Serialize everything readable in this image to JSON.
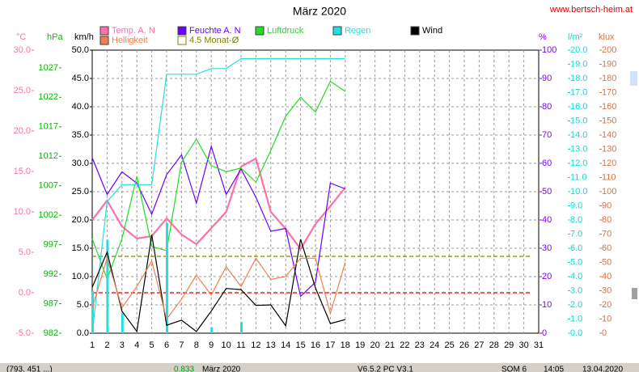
{
  "chart_data": {
    "type": "line",
    "title": "März 2020",
    "source": "www.bertsch-heim.at",
    "x": [
      1,
      2,
      3,
      4,
      5,
      6,
      7,
      8,
      9,
      10,
      11,
      12,
      13,
      14,
      15,
      16,
      17,
      18
    ],
    "xlim": [
      1,
      31
    ],
    "xticks": [
      1,
      2,
      3,
      4,
      5,
      6,
      7,
      8,
      9,
      10,
      11,
      12,
      13,
      14,
      15,
      16,
      17,
      18,
      19,
      20,
      21,
      22,
      23,
      24,
      25,
      26,
      27,
      28,
      29,
      30,
      31
    ],
    "grid": true,
    "axes": [
      {
        "unit": "°C",
        "color": "#ff6fa8",
        "side": "left",
        "lim": [
          -5,
          30
        ],
        "ticks": [
          {
            "value": -5,
            "label": "-5.0"
          },
          {
            "value": 0,
            "label": "0.0"
          },
          {
            "value": 5,
            "label": "5.0"
          },
          {
            "value": 10,
            "label": "10.0"
          },
          {
            "value": 15,
            "label": "15.0"
          },
          {
            "value": 20,
            "label": "20.0"
          },
          {
            "value": 25,
            "label": "25.0"
          },
          {
            "value": 30,
            "label": "30.0"
          }
        ]
      },
      {
        "unit": "hPa",
        "color": "#10b010",
        "side": "left",
        "lim": [
          982,
          1030
        ],
        "ticks": [
          982,
          987,
          992,
          997,
          1002,
          1007,
          1012,
          1017,
          1022,
          1027
        ]
      },
      {
        "unit": "km/h",
        "color": "#000000",
        "side": "left",
        "lim": [
          0,
          50
        ],
        "ticks": [
          {
            "value": 0,
            "label": "0.0"
          },
          {
            "value": 5,
            "label": "5.0"
          },
          {
            "value": 10,
            "label": "10.0"
          },
          {
            "value": 15,
            "label": "15.0"
          },
          {
            "value": 20,
            "label": "20.0"
          },
          {
            "value": 25,
            "label": "25.0"
          },
          {
            "value": 30,
            "label": "30.0"
          },
          {
            "value": 35,
            "label": "35.0"
          },
          {
            "value": 40,
            "label": "40.0"
          },
          {
            "value": 45,
            "label": "45.0"
          },
          {
            "value": 50,
            "label": "50.0"
          }
        ]
      },
      {
        "unit": "%",
        "color": "#8000ff",
        "side": "right",
        "lim": [
          0,
          100
        ],
        "ticks": [
          0,
          10,
          20,
          30,
          40,
          50,
          60,
          70,
          80,
          90,
          100
        ]
      },
      {
        "unit": "l/m²",
        "color": "#10d8d8",
        "side": "right",
        "lim": [
          0,
          20
        ],
        "ticks": [
          {
            "value": 0,
            "label": "0.0"
          },
          {
            "value": 1,
            "label": "1.0"
          },
          {
            "value": 2,
            "label": "2.0"
          },
          {
            "value": 3,
            "label": "3.0"
          },
          {
            "value": 4,
            "label": "4.0"
          },
          {
            "value": 5,
            "label": "5.0"
          },
          {
            "value": 6,
            "label": "6.0"
          },
          {
            "value": 7,
            "label": "7.0"
          },
          {
            "value": 8,
            "label": "8.0"
          },
          {
            "value": 9,
            "label": "9.0"
          },
          {
            "value": 10,
            "label": "10.0"
          },
          {
            "value": 11,
            "label": "11.0"
          },
          {
            "value": 12,
            "label": "12.0"
          },
          {
            "value": 13,
            "label": "13.0"
          },
          {
            "value": 14,
            "label": "14.0"
          },
          {
            "value": 15,
            "label": "15.0"
          },
          {
            "value": 16,
            "label": "16.0"
          },
          {
            "value": 17,
            "label": "17.0"
          },
          {
            "value": 18,
            "label": "18.0"
          },
          {
            "value": 19,
            "label": "19.0"
          },
          {
            "value": 20,
            "label": "20.0"
          }
        ]
      },
      {
        "unit": "klux",
        "color": "#e07040",
        "side": "right",
        "lim": [
          0,
          200
        ],
        "ticks": [
          0,
          10,
          20,
          30,
          40,
          50,
          60,
          70,
          80,
          90,
          100,
          110,
          120,
          130,
          140,
          150,
          160,
          170,
          180,
          190,
          200
        ]
      }
    ],
    "series": [
      {
        "name": "Temp. A. N",
        "color": "#ff6fa8",
        "axis": 0,
        "width": 2.2,
        "values": [
          9.0,
          11.4,
          8.2,
          6.7,
          7.0,
          9.2,
          7.2,
          6.0,
          8.0,
          10.0,
          15.6,
          16.6,
          10.0,
          7.9,
          5.4,
          8.5,
          10.7,
          13.0
        ]
      },
      {
        "name": "Feuchte A. N",
        "color": "#6a00ff",
        "axis": 3,
        "width": 1.2,
        "values": [
          62,
          49,
          57,
          53,
          42,
          56,
          63,
          46,
          66,
          49,
          58,
          48,
          36,
          37,
          13,
          18,
          53,
          51
        ]
      },
      {
        "name": "Luftdruck",
        "color": "#22dd22",
        "axis": 1,
        "width": 1.2,
        "values": [
          998.0,
          991.2,
          998.0,
          1008.6,
          996.7,
          996.0,
          1011.0,
          1014.9,
          1010.4,
          1009.4,
          1010.0,
          1007.6,
          1013.0,
          1018.8,
          1022.0,
          1019.5,
          1024.7,
          1023.0
        ]
      },
      {
        "name": "Regen",
        "color": "#22e0e0",
        "axis": 4,
        "width": 1.2,
        "values": [
          0,
          9.3,
          10.5,
          10.5,
          10.5,
          18.3,
          18.3,
          18.3,
          18.7,
          18.7,
          19.4,
          19.4,
          19.4,
          19.4,
          19.4,
          19.4,
          19.4,
          19.4
        ],
        "bars": [
          3.0,
          6.6,
          1.4,
          null,
          null,
          7.8,
          null,
          null,
          0.4,
          null,
          0.8,
          null,
          null,
          null,
          null,
          null,
          null,
          null
        ]
      },
      {
        "name": "Wind",
        "color": "#000000",
        "axis": 2,
        "width": 1.2,
        "values": [
          8.1,
          14.3,
          3.9,
          0.3,
          17.4,
          1.4,
          2.3,
          0.3,
          3.9,
          7.9,
          7.7,
          4.9,
          5.0,
          1.3,
          16.6,
          8.0,
          1.7,
          2.4
        ]
      },
      {
        "name": "Helligkeit",
        "color": "#f08050",
        "axis": 5,
        "width": 1.2,
        "values": [
          18,
          53,
          18,
          33,
          51,
          10,
          24,
          41,
          27,
          47,
          33,
          53,
          38,
          40,
          53,
          53,
          14,
          50
        ]
      }
    ],
    "reference_lines": [
      {
        "name": "4.5 Monat-Ø",
        "value": 4.5,
        "axis": 0,
        "color": "#808000"
      },
      {
        "value": 0,
        "axis": 0,
        "color": "#cc0000"
      }
    ],
    "status_bar": [
      "(793, 451 ...)",
      "0.833",
      "März 2020",
      "V6.5.2 PC V3.1",
      "SOM 6",
      "14:05",
      "13.04.2020"
    ]
  }
}
